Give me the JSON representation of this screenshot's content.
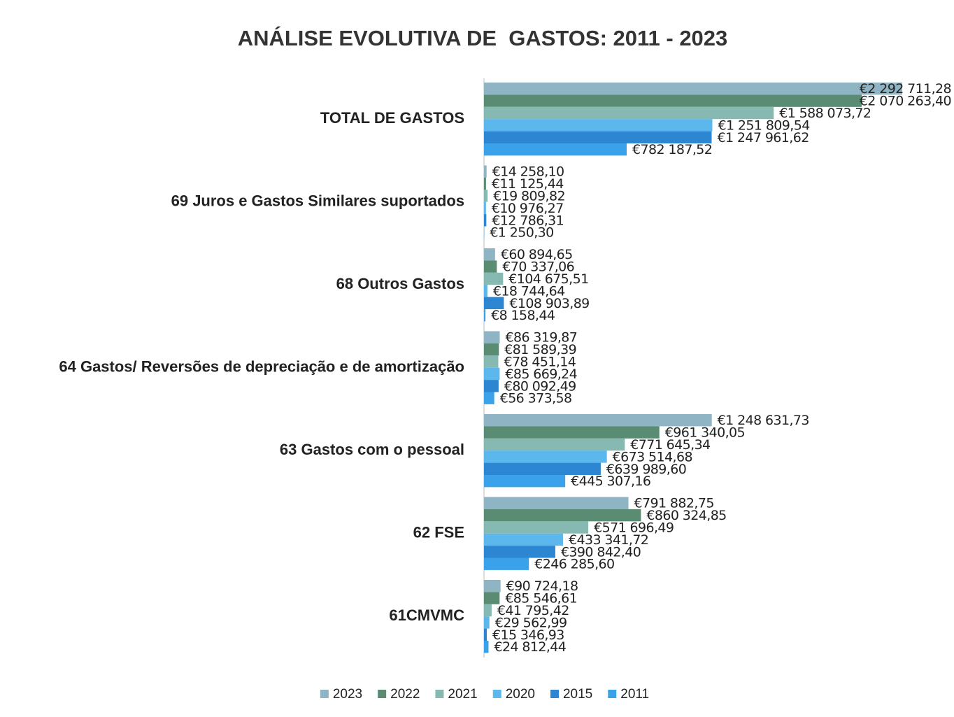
{
  "chart_data": {
    "type": "hbar",
    "title": "ANÁLISE EVOLUTIVA DE  GASTOS: 2011 - 2023",
    "categories": [
      "TOTAL DE GASTOS",
      "69 Juros e Gastos Similares suportados",
      "68 Outros Gastos",
      "64 Gastos/ Reversões de depreciação e de amortização",
      "63 Gastos com o pessoal",
      "62 FSE",
      "61CMVMC"
    ],
    "series": [
      {
        "name": "2023",
        "color": "#8fb5c4",
        "values": [
          2292711.28,
          14258.1,
          60894.65,
          86319.87,
          1248631.73,
          791882.75,
          90724.18
        ],
        "value_labels": [
          "€2 292 711,28",
          "€14 258,10",
          "€60 894,65",
          "€86 319,87",
          "€1 248 631,73",
          "€791 882,75",
          "€90 724,18"
        ]
      },
      {
        "name": "2022",
        "color": "#5a8c74",
        "values": [
          2070263.4,
          11125.44,
          70337.06,
          81589.39,
          961340.05,
          860324.85,
          85546.61
        ],
        "value_labels": [
          "€2 070 263,40",
          "€11 125,44",
          "€70 337,06",
          "€81 589,39",
          "€961 340,05",
          "€860 324,85",
          "€85 546,61"
        ]
      },
      {
        "name": "2021",
        "color": "#86b9b1",
        "values": [
          1588073.72,
          19809.82,
          104675.51,
          78451.14,
          771645.34,
          571696.49,
          41795.42
        ],
        "value_labels": [
          "€1 588 073,72",
          "€19 809,82",
          "€104 675,51",
          "€78 451,14",
          "€771 645,34",
          "€571 696,49",
          "€41 795,42"
        ]
      },
      {
        "name": "2020",
        "color": "#5cb8ec",
        "values": [
          1251809.54,
          10976.27,
          18744.64,
          85669.24,
          673514.68,
          433341.72,
          29562.99
        ],
        "value_labels": [
          "€1 251 809,54",
          "€10 976,27",
          "€18 744,64",
          "€85 669,24",
          "€673 514,68",
          "€433 341,72",
          "€29 562,99"
        ]
      },
      {
        "name": "2015",
        "color": "#2d86d2",
        "values": [
          1247961.62,
          12786.31,
          108903.89,
          80092.49,
          639989.6,
          390842.4,
          15346.93
        ],
        "value_labels": [
          "€1 247 961,62",
          "€12 786,31",
          "€108 903,89",
          "€80 092,49",
          "€639 989,60",
          "€390 842,40",
          "€15 346,93"
        ]
      },
      {
        "name": "2011",
        "color": "#3aa2ea",
        "values": [
          782187.52,
          1250.3,
          8158.44,
          56373.58,
          445307.16,
          246285.6,
          24812.44
        ],
        "value_labels": [
          "€782 187,52",
          "€1 250,30",
          "€8 158,44",
          "€56 373,58",
          "€445 307,16",
          "€246 285,60",
          "€24 812,44"
        ]
      }
    ]
  }
}
